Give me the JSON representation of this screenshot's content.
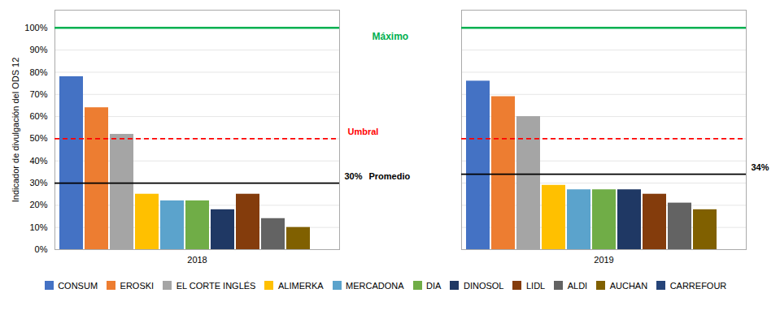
{
  "chart_data": {
    "type": "bar",
    "ylabel": "Indicador de divulgación del ODS 12",
    "categories": [
      "2018",
      "2019"
    ],
    "series": [
      {
        "name": "CONSUM",
        "color": "#4472C4",
        "values": [
          0.78,
          0.76
        ]
      },
      {
        "name": "EROSKI",
        "color": "#ED7D31",
        "values": [
          0.64,
          0.69
        ]
      },
      {
        "name": "EL CORTE INGLÉS",
        "color": "#A5A5A5",
        "values": [
          0.52,
          0.6
        ]
      },
      {
        "name": "ALIMERKA",
        "color": "#FFC000",
        "values": [
          0.25,
          0.29
        ]
      },
      {
        "name": "MERCADONA",
        "color": "#5BA3CC",
        "values": [
          0.22,
          0.27
        ]
      },
      {
        "name": "DIA",
        "color": "#70AD47",
        "values": [
          0.22,
          0.27
        ]
      },
      {
        "name": "DINOSOL",
        "color": "#1F3864",
        "values": [
          0.18,
          0.27
        ]
      },
      {
        "name": "LIDL",
        "color": "#843C0C",
        "values": [
          0.25,
          0.25
        ]
      },
      {
        "name": "ALDI",
        "color": "#636363",
        "values": [
          0.14,
          0.21
        ]
      },
      {
        "name": "AUCHAN",
        "color": "#806000",
        "values": [
          0.1,
          0.18
        ]
      },
      {
        "name": "CARREFOUR",
        "color": "#264478",
        "values": [
          0.0,
          0.0
        ]
      }
    ],
    "reference_lines": [
      {
        "name": "Máximo",
        "value": 1.0,
        "color": "#00B050",
        "line_style": "solid"
      },
      {
        "name": "Umbral",
        "value": 0.5,
        "color": "#FF0000",
        "line_style": "dashed"
      }
    ],
    "average": {
      "name": "Promedio",
      "color": "#000000",
      "values": [
        0.3,
        0.34
      ],
      "value_labels": [
        "30%",
        "34%"
      ]
    },
    "ylim": [
      0,
      1.08
    ],
    "yticks": [
      {
        "value": 0,
        "label": "0%"
      },
      {
        "value": 0.1,
        "label": "10%"
      },
      {
        "value": 0.2,
        "label": "20%"
      },
      {
        "value": 0.3,
        "label": "30%"
      },
      {
        "value": 0.4,
        "label": "40%"
      },
      {
        "value": 0.5,
        "label": "50%"
      },
      {
        "value": 0.6,
        "label": "60%"
      },
      {
        "value": 0.7,
        "label": "70%"
      },
      {
        "value": 0.8,
        "label": "80%"
      },
      {
        "value": 0.9,
        "label": "90%"
      },
      {
        "value": 1.0,
        "label": "100%"
      }
    ],
    "grid": true,
    "legend": "bottom"
  }
}
